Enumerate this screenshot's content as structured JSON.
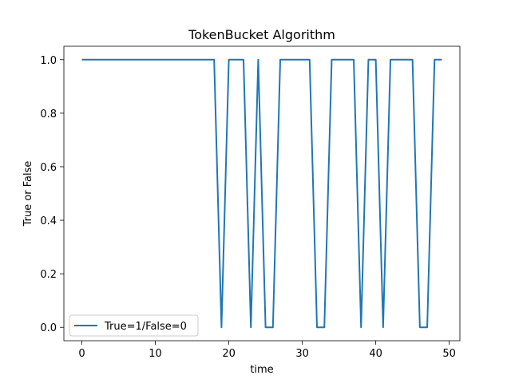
{
  "chart_data": {
    "type": "line",
    "title": "TokenBucket Algorithm",
    "xlabel": "time",
    "ylabel": "True or False",
    "xlim": [
      -2.45,
      51.45
    ],
    "ylim": [
      -0.05,
      1.05
    ],
    "x_ticks": [
      0,
      10,
      20,
      30,
      40,
      50
    ],
    "y_ticks": [
      0.0,
      0.2,
      0.4,
      0.6,
      0.8,
      1.0
    ],
    "x_tick_labels": [
      "0",
      "10",
      "20",
      "30",
      "40",
      "50"
    ],
    "y_tick_labels": [
      "0.0",
      "0.2",
      "0.4",
      "0.6",
      "0.8",
      "1.0"
    ],
    "grid": false,
    "legend_position": "lower-left",
    "series": [
      {
        "name": "True=1/False=0",
        "color": "#1f77b4",
        "x": [
          0,
          1,
          2,
          3,
          4,
          5,
          6,
          7,
          8,
          9,
          10,
          11,
          12,
          13,
          14,
          15,
          16,
          17,
          18,
          19,
          20,
          21,
          22,
          23,
          24,
          25,
          26,
          27,
          28,
          29,
          30,
          31,
          32,
          33,
          34,
          35,
          36,
          37,
          38,
          39,
          40,
          41,
          42,
          43,
          44,
          45,
          46,
          47,
          48,
          49
        ],
        "y": [
          1,
          1,
          1,
          1,
          1,
          1,
          1,
          1,
          1,
          1,
          1,
          1,
          1,
          1,
          1,
          1,
          1,
          1,
          1,
          0,
          1,
          1,
          1,
          0,
          1,
          0,
          0,
          1,
          1,
          1,
          1,
          1,
          0,
          0,
          1,
          1,
          1,
          1,
          0,
          1,
          1,
          0,
          1,
          1,
          1,
          1,
          0,
          0,
          1,
          1
        ]
      }
    ]
  }
}
